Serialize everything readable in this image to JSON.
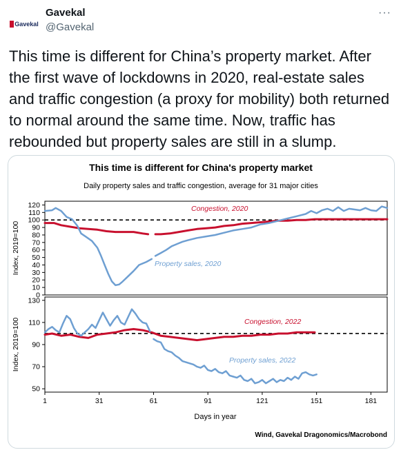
{
  "tweet": {
    "display_name": "Gavekal",
    "handle": "@Gavekal",
    "avatar_text": "Gavekal",
    "more_label": "···",
    "text": "This time is different for China’s property market. After the first wave of lockdowns in 2020, real-estate sales and traffic congestion (a proxy for mobility) both returned to normal around the same time. Now, traffic has rebounded but property sales are still in a slump."
  },
  "figure": {
    "title": "This time is different for China's property market",
    "subtitle": "Daily property sales and traffic congestion, average for 31 major cities",
    "xlabel": "Days in year",
    "source": "Wind, Gavekal Dragonomics/Macrobond",
    "colors": {
      "congestion": "#c8102e",
      "sales": "#6e9fd2",
      "reference": "#000000"
    }
  },
  "chart_data": [
    {
      "type": "line",
      "ylabel": "Index, 2019=100",
      "ylim": [
        0,
        125
      ],
      "yticks": [
        0,
        10,
        20,
        30,
        40,
        50,
        60,
        70,
        80,
        90,
        100,
        110,
        120
      ],
      "xlim": [
        1,
        190
      ],
      "reference_line": 100,
      "series": [
        {
          "name": "Congestion, 2020",
          "points": [
            [
              1,
              96
            ],
            [
              6,
              96
            ],
            [
              10,
              93
            ],
            [
              15,
              91
            ],
            [
              20,
              89
            ],
            [
              25,
              88
            ],
            [
              30,
              87
            ],
            [
              35,
              85
            ],
            [
              40,
              84
            ],
            [
              45,
              84
            ],
            [
              50,
              84
            ],
            [
              55,
              82
            ],
            [
              58,
              81
            ],
            [
              62,
              81
            ],
            [
              65,
              81
            ],
            [
              70,
              82
            ],
            [
              75,
              84
            ],
            [
              80,
              86
            ],
            [
              85,
              88
            ],
            [
              90,
              89
            ],
            [
              95,
              90
            ],
            [
              100,
              92
            ],
            [
              105,
              93
            ],
            [
              110,
              95
            ],
            [
              115,
              96
            ],
            [
              120,
              97
            ],
            [
              125,
              98
            ],
            [
              130,
              99
            ],
            [
              135,
              99
            ],
            [
              140,
              100
            ],
            [
              145,
              100
            ],
            [
              150,
              101
            ],
            [
              155,
              101
            ],
            [
              160,
              101
            ],
            [
              165,
              101
            ],
            [
              170,
              101
            ],
            [
              175,
              101
            ],
            [
              180,
              101
            ],
            [
              185,
              101
            ],
            [
              190,
              101
            ]
          ]
        },
        {
          "name": "Property sales, 2020",
          "points": [
            [
              1,
              112
            ],
            [
              5,
              113
            ],
            [
              7,
              116
            ],
            [
              10,
              112
            ],
            [
              13,
              104
            ],
            [
              16,
              101
            ],
            [
              19,
              92
            ],
            [
              21,
              82
            ],
            [
              24,
              77
            ],
            [
              27,
              72
            ],
            [
              30,
              63
            ],
            [
              32,
              52
            ],
            [
              34,
              40
            ],
            [
              36,
              28
            ],
            [
              38,
              18
            ],
            [
              40,
              13
            ],
            [
              42,
              14
            ],
            [
              44,
              18
            ],
            [
              47,
              25
            ],
            [
              50,
              32
            ],
            [
              53,
              40
            ],
            [
              57,
              44
            ],
            [
              60,
              48
            ],
            [
              62,
              52
            ],
            [
              65,
              56
            ],
            [
              68,
              60
            ],
            [
              71,
              65
            ],
            [
              74,
              68
            ],
            [
              77,
              71
            ],
            [
              80,
              73
            ],
            [
              85,
              76
            ],
            [
              90,
              78
            ],
            [
              95,
              80
            ],
            [
              100,
              83
            ],
            [
              105,
              86
            ],
            [
              110,
              88
            ],
            [
              115,
              90
            ],
            [
              120,
              94
            ],
            [
              125,
              96
            ],
            [
              130,
              99
            ],
            [
              135,
              102
            ],
            [
              140,
              105
            ],
            [
              145,
              108
            ],
            [
              148,
              112
            ],
            [
              151,
              109
            ],
            [
              154,
              113
            ],
            [
              157,
              115
            ],
            [
              160,
              112
            ],
            [
              163,
              117
            ],
            [
              166,
              112
            ],
            [
              169,
              115
            ],
            [
              172,
              114
            ],
            [
              175,
              113
            ],
            [
              178,
              116
            ],
            [
              181,
              113
            ],
            [
              184,
              112
            ],
            [
              187,
              118
            ],
            [
              190,
              116
            ]
          ]
        }
      ]
    },
    {
      "type": "line",
      "ylabel": "Index, 2019=100",
      "ylim": [
        47,
        133
      ],
      "yticks": [
        50,
        70,
        90,
        110,
        130
      ],
      "xticks": [
        1,
        31,
        61,
        91,
        121,
        151,
        181
      ],
      "xlim": [
        1,
        190
      ],
      "reference_line": 100,
      "series": [
        {
          "name": "Congestion, 2022",
          "points": [
            [
              1,
              99
            ],
            [
              5,
              100
            ],
            [
              10,
              98
            ],
            [
              15,
              99
            ],
            [
              20,
              97
            ],
            [
              25,
              96
            ],
            [
              30,
              99
            ],
            [
              35,
              100
            ],
            [
              40,
              101
            ],
            [
              45,
              103
            ],
            [
              50,
              104
            ],
            [
              55,
              103
            ],
            [
              60,
              101
            ],
            [
              65,
              98
            ],
            [
              70,
              97
            ],
            [
              75,
              96
            ],
            [
              80,
              95
            ],
            [
              85,
              94
            ],
            [
              90,
              95
            ],
            [
              95,
              96
            ],
            [
              100,
              97
            ],
            [
              105,
              97
            ],
            [
              110,
              98
            ],
            [
              115,
              98
            ],
            [
              120,
              99
            ],
            [
              125,
              99
            ],
            [
              130,
              100
            ],
            [
              135,
              100
            ],
            [
              140,
              101
            ],
            [
              145,
              101
            ],
            [
              150,
              101
            ]
          ]
        },
        {
          "name": "Property sales, 2022",
          "points": [
            [
              1,
              101
            ],
            [
              3,
              104
            ],
            [
              5,
              106
            ],
            [
              7,
              103
            ],
            [
              9,
              101
            ],
            [
              11,
              109
            ],
            [
              13,
              116
            ],
            [
              15,
              113
            ],
            [
              17,
              105
            ],
            [
              19,
              100
            ],
            [
              21,
              98
            ],
            [
              23,
              101
            ],
            [
              25,
              104
            ],
            [
              27,
              108
            ],
            [
              29,
              105
            ],
            [
              31,
              112
            ],
            [
              33,
              119
            ],
            [
              35,
              113
            ],
            [
              37,
              107
            ],
            [
              39,
              112
            ],
            [
              41,
              116
            ],
            [
              43,
              110
            ],
            [
              45,
              108
            ],
            [
              47,
              115
            ],
            [
              49,
              122
            ],
            [
              51,
              118
            ],
            [
              53,
              113
            ],
            [
              55,
              110
            ],
            [
              57,
              109
            ],
            [
              59,
              102
            ],
            [
              61,
              95
            ],
            [
              63,
              93
            ],
            [
              65,
              92
            ],
            [
              67,
              86
            ],
            [
              69,
              84
            ],
            [
              71,
              83
            ],
            [
              73,
              80
            ],
            [
              75,
              78
            ],
            [
              77,
              75
            ],
            [
              79,
              74
            ],
            [
              81,
              73
            ],
            [
              83,
              72
            ],
            [
              85,
              70
            ],
            [
              87,
              69
            ],
            [
              89,
              71
            ],
            [
              91,
              67
            ],
            [
              93,
              66
            ],
            [
              95,
              68
            ],
            [
              97,
              65
            ],
            [
              99,
              64
            ],
            [
              101,
              66
            ],
            [
              103,
              62
            ],
            [
              105,
              61
            ],
            [
              107,
              60
            ],
            [
              109,
              62
            ],
            [
              111,
              58
            ],
            [
              113,
              57
            ],
            [
              115,
              59
            ],
            [
              117,
              55
            ],
            [
              119,
              56
            ],
            [
              121,
              58
            ],
            [
              123,
              55
            ],
            [
              125,
              57
            ],
            [
              127,
              59
            ],
            [
              129,
              56
            ],
            [
              131,
              58
            ],
            [
              133,
              57
            ],
            [
              135,
              60
            ],
            [
              137,
              58
            ],
            [
              139,
              61
            ],
            [
              141,
              59
            ],
            [
              143,
              64
            ],
            [
              145,
              65
            ],
            [
              147,
              63
            ],
            [
              149,
              62
            ],
            [
              151,
              63
            ]
          ]
        }
      ]
    }
  ]
}
